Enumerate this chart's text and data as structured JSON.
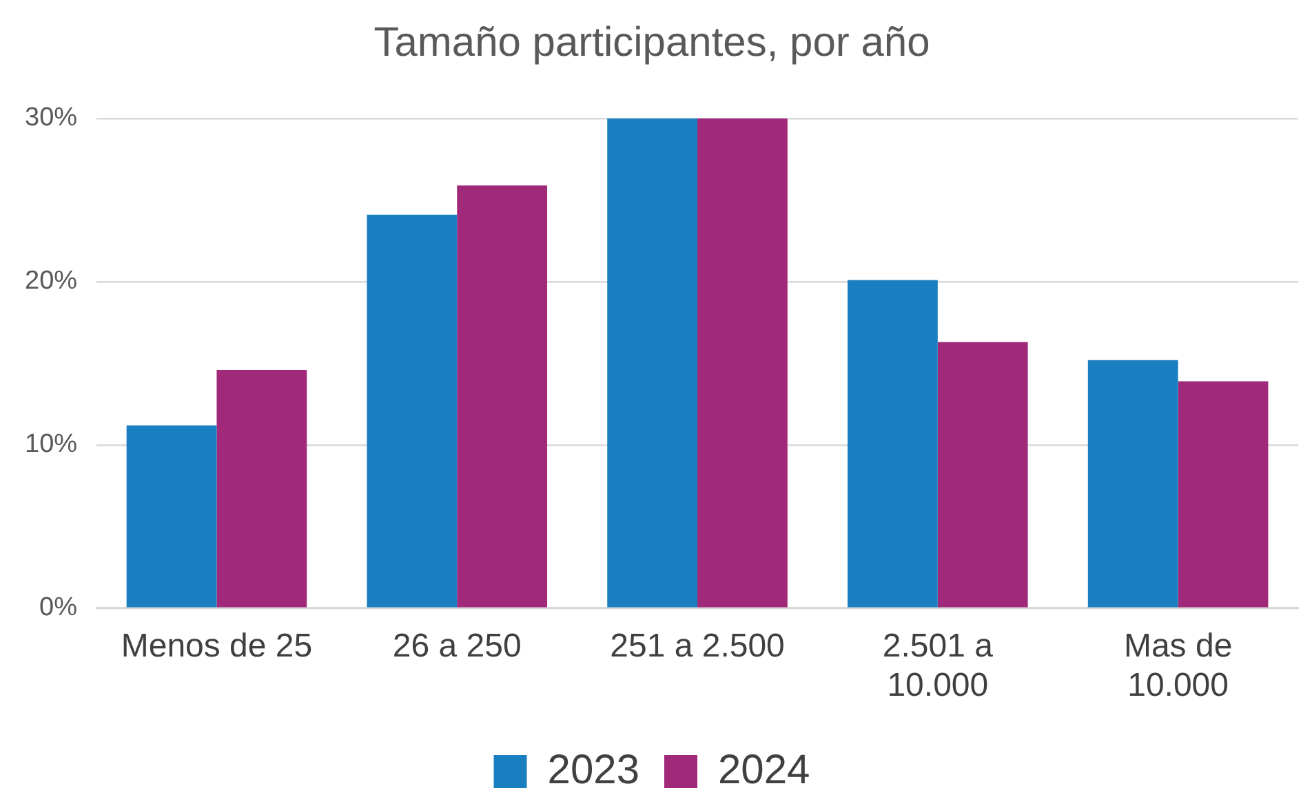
{
  "chart_data": {
    "type": "bar",
    "title": "Tamaño participantes, por año",
    "categories": [
      "Menos de 25",
      "26 a 250",
      "251 a 2.500",
      "2.501 a 10.000",
      "Mas de 10.000"
    ],
    "series": [
      {
        "name": "2023",
        "color": "#1a7fc1",
        "values": [
          11.2,
          24.1,
          30.0,
          20.1,
          15.2
        ]
      },
      {
        "name": "2024",
        "color": "#a0297a",
        "values": [
          14.6,
          25.9,
          30.0,
          16.3,
          13.9
        ]
      }
    ],
    "ylim": [
      0,
      30
    ],
    "yticks": [
      {
        "value": 0,
        "label": "0%"
      },
      {
        "value": 10,
        "label": "10%"
      },
      {
        "value": 20,
        "label": "20%"
      },
      {
        "value": 30,
        "label": "30%"
      }
    ],
    "grid": "y",
    "legend": "bottom"
  }
}
